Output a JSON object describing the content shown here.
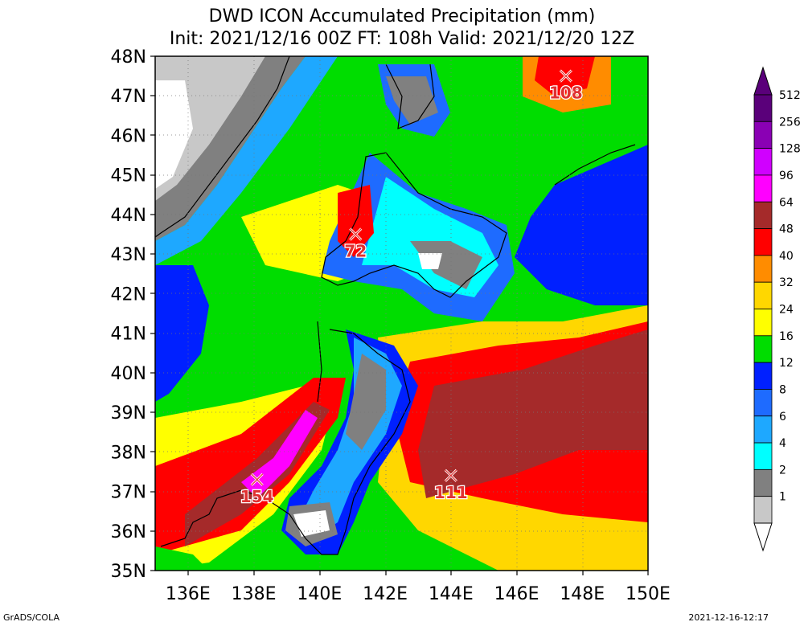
{
  "title": {
    "line1": "DWD ICON Accumulated Precipitation (mm)",
    "line2": "Init: 2021/12/16 00Z  FT: 108h  Valid: 2021/12/20 12Z"
  },
  "axes": {
    "lat_labels": [
      "48N",
      "47N",
      "46N",
      "45N",
      "44N",
      "43N",
      "42N",
      "41N",
      "40N",
      "39N",
      "38N",
      "37N",
      "36N",
      "35N"
    ],
    "lon_labels": [
      "136E",
      "138E",
      "140E",
      "142E",
      "144E",
      "146E",
      "148E",
      "150E"
    ]
  },
  "colorbar": {
    "labels": [
      "512",
      "256",
      "128",
      "96",
      "64",
      "48",
      "40",
      "32",
      "24",
      "16",
      "12",
      "8",
      "6",
      "4",
      "2",
      "1"
    ],
    "colors": [
      "#5a007a",
      "#8a00b4",
      "#d000ff",
      "#ff00ff",
      "#a52a2a",
      "#ff0000",
      "#ff8c00",
      "#ffd700",
      "#ffff00",
      "#00dd00",
      "#0020ff",
      "#1e6bff",
      "#1ea8ff",
      "#00ffff",
      "#808080",
      "#c8c8c8"
    ]
  },
  "markers": [
    {
      "label": "108",
      "lon": 147.5,
      "lat": 47.5
    },
    {
      "label": "72",
      "lon": 141.1,
      "lat": 43.5
    },
    {
      "label": "154",
      "lon": 138.1,
      "lat": 37.3
    },
    {
      "label": "111",
      "lon": 144.0,
      "lat": 37.4
    }
  ],
  "footer": {
    "left": "GrADS/COLA",
    "right": "2021-12-16-12:17"
  }
}
